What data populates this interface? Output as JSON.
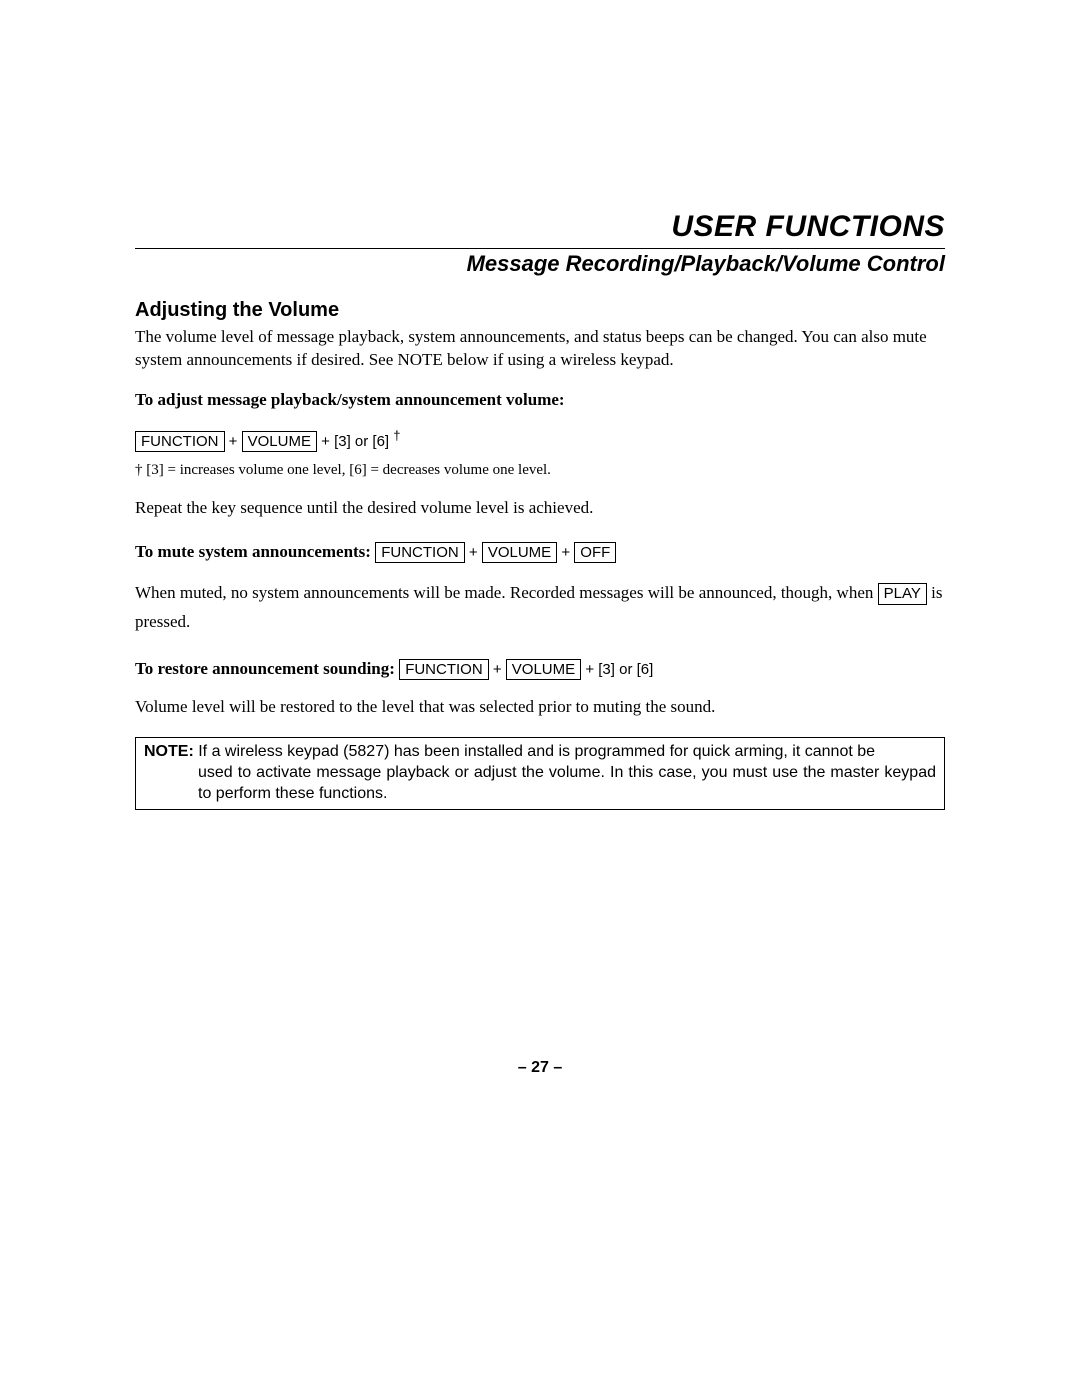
{
  "header": {
    "title": "USER FUNCTIONS",
    "subtitle": "Message Recording/Playback/Volume Control"
  },
  "section": {
    "heading": "Adjusting the Volume",
    "intro": "The volume level of message playback, system announcements, and status beeps can be changed. You can also mute system announcements if desired. See NOTE below if using a wireless keypad."
  },
  "adjust": {
    "label": "To adjust message playback/system announcement volume:",
    "key1": "FUNCTION",
    "plus1": "   +  ",
    "key2": "VOLUME",
    "suffix": "  + [3] or [6] ",
    "dagger": "†",
    "footnote": "† [3] = increases volume one level, [6] = decreases volume one level.",
    "repeat": "Repeat the key sequence until the desired volume level is achieved."
  },
  "mute": {
    "label": "To mute system announcements: ",
    "key1": "FUNCTION",
    "plus1": "   +  ",
    "key2": "VOLUME",
    "plus2": "   +  ",
    "key3": "OFF",
    "body_pre": "When muted, no system announcements will be made.  Recorded messages will be announced, though, when ",
    "key_play": "PLAY",
    "body_post": " is pressed."
  },
  "restore": {
    "label": "To restore announcement sounding: ",
    "key1": "FUNCTION",
    "plus1": "   +  ",
    "key2": "VOLUME",
    "suffix": "  + [3] or [6]",
    "body": "Volume level will be restored to the level that was selected prior to muting the sound."
  },
  "note": {
    "label": "NOTE:",
    "line1": " If a wireless keypad (5827) has been installed and is programmed for quick arming, it cannot be",
    "line2": "used to activate message playback or adjust the volume. In this case, you must use the master keypad to perform these functions."
  },
  "pagenum": "– 27 –"
}
